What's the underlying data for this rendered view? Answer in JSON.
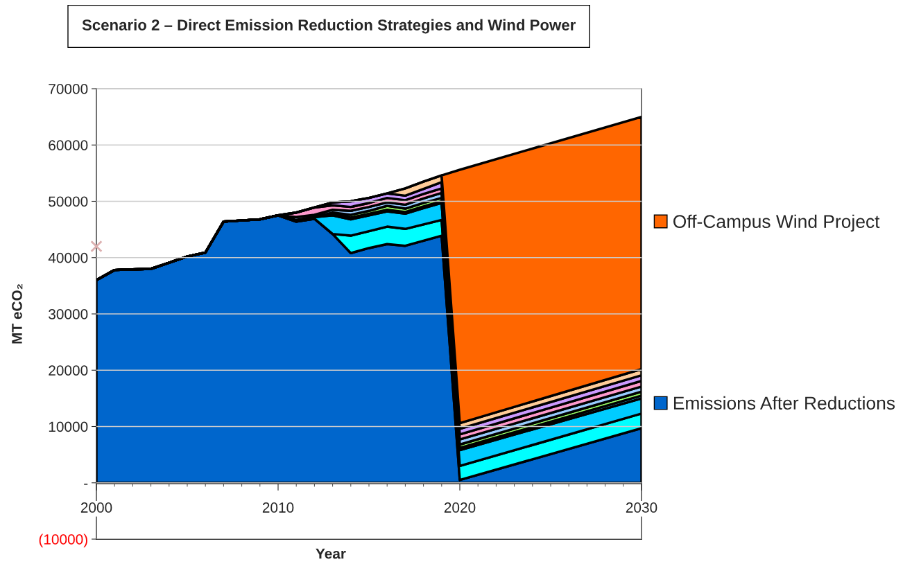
{
  "chart_data": {
    "type": "area",
    "stacked": true,
    "title": "Scenario 2 – Direct Emission Reduction Strategies and Wind Power",
    "xlabel": "Year",
    "ylabel": "MT eCO₂",
    "x": [
      2000,
      2001,
      2002,
      2003,
      2004,
      2005,
      2006,
      2007,
      2008,
      2009,
      2010,
      2011,
      2012,
      2013,
      2014,
      2015,
      2016,
      2017,
      2018,
      2019,
      2020,
      2030
    ],
    "series": [
      {
        "name": "Emissions After Reductions",
        "color": "#0066cc",
        "values": [
          36000,
          37800,
          37900,
          38000,
          39100,
          40200,
          40900,
          46400,
          46600,
          46800,
          47500,
          46400,
          46900,
          44200,
          40800,
          41700,
          42400,
          42100,
          43000,
          43900,
          500,
          9700
        ]
      },
      {
        "color": "#00ffff",
        "values": [
          0,
          0,
          0,
          0,
          0,
          0,
          0,
          0,
          0,
          0,
          0,
          0,
          0,
          0,
          3100,
          3000,
          3100,
          3000,
          2900,
          2800,
          2500,
          2600
        ]
      },
      {
        "color": "#00ccff",
        "values": [
          0,
          0,
          0,
          0,
          0,
          0,
          0,
          0,
          0,
          0,
          0,
          300,
          300,
          3300,
          2900,
          2800,
          2700,
          2700,
          2900,
          3000,
          2800,
          2700
        ]
      },
      {
        "color": "#33ccff",
        "values": [
          0,
          0,
          0,
          0,
          0,
          0,
          0,
          0,
          0,
          0,
          0,
          0,
          0,
          300,
          300,
          300,
          300,
          300,
          300,
          300,
          400,
          500
        ]
      },
      {
        "color": "#99ff66",
        "values": [
          0,
          0,
          0,
          0,
          0,
          0,
          0,
          0,
          0,
          0,
          0,
          0,
          0,
          200,
          500,
          500,
          700,
          600,
          600,
          600,
          600,
          700
        ]
      },
      {
        "color": "#99ccff",
        "values": [
          0,
          0,
          0,
          0,
          0,
          0,
          0,
          0,
          0,
          0,
          0,
          500,
          400,
          500,
          700,
          700,
          600,
          700,
          800,
          900,
          900,
          900
        ]
      },
      {
        "color": "#ff99cc",
        "values": [
          0,
          0,
          0,
          0,
          0,
          0,
          0,
          0,
          0,
          0,
          0,
          800,
          1300,
          800,
          700,
          700,
          800,
          800,
          800,
          800,
          900,
          1000
        ]
      },
      {
        "color": "#cc99ff",
        "values": [
          0,
          0,
          0,
          0,
          0,
          0,
          0,
          0,
          0,
          0,
          0,
          0,
          0,
          500,
          1000,
          900,
          800,
          800,
          900,
          1100,
          1000,
          1000
        ]
      },
      {
        "color": "#ffcc99",
        "values": [
          0,
          0,
          0,
          0,
          0,
          0,
          0,
          0,
          0,
          0,
          0,
          0,
          0,
          0,
          0,
          0,
          0,
          1300,
          1300,
          1200,
          1000,
          1100
        ]
      },
      {
        "name": "Off-Campus Wind Project",
        "color": "#ff6600",
        "values": [
          0,
          0,
          0,
          0,
          0,
          0,
          0,
          0,
          0,
          0,
          0,
          0,
          0,
          0,
          0,
          0,
          0,
          0,
          0,
          0,
          45000,
          44800
        ]
      },
      {
        "type": "scatter",
        "marker": "cross",
        "color": "#ddb0b0",
        "x": [
          2000
        ],
        "values": [
          42000
        ]
      }
    ],
    "xlim": [
      2000,
      2030
    ],
    "xticks": [
      2000,
      2010,
      2020,
      2030
    ],
    "ylim": [
      -10000,
      70000
    ],
    "yticks": [
      {
        "value": -10000,
        "label": "(10000)"
      },
      {
        "value": 0,
        "label": "-"
      },
      10000,
      20000,
      30000,
      40000,
      50000,
      60000,
      70000
    ],
    "grid": "y",
    "legend": "right"
  }
}
